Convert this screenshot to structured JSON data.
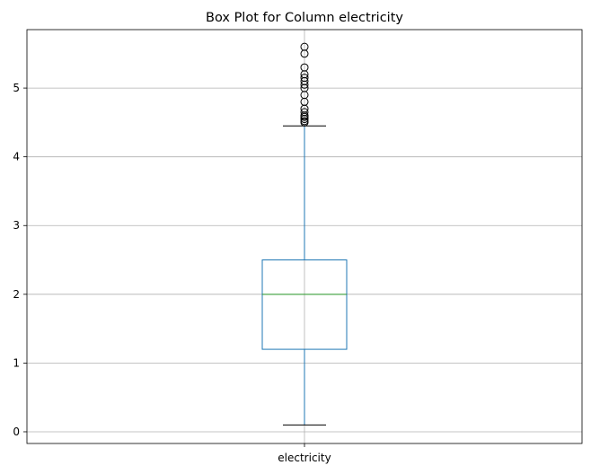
{
  "chart_data": {
    "type": "box",
    "title": "Box Plot for Column electricity",
    "xlabel": "",
    "ylabel": "",
    "categories": [
      "electricity"
    ],
    "ylim": [
      -0.17,
      5.85
    ],
    "y_ticks": [
      0,
      1,
      2,
      3,
      4,
      5
    ],
    "grid": true,
    "series": [
      {
        "whisker_low": 0.1,
        "q1": 1.2,
        "median": 2.0,
        "q3": 2.5,
        "whisker_high": 4.45,
        "outliers": [
          4.5,
          4.52,
          4.55,
          4.58,
          4.6,
          4.65,
          4.7,
          4.8,
          4.9,
          5.0,
          5.05,
          5.1,
          5.15,
          5.2,
          5.3,
          5.5,
          5.6
        ]
      }
    ],
    "colors": {
      "box": "#1f77b4",
      "median": "#2ca02c",
      "whisker_cap": "#000000",
      "outlier": "#000000",
      "grid": "#b0b0b0"
    }
  }
}
